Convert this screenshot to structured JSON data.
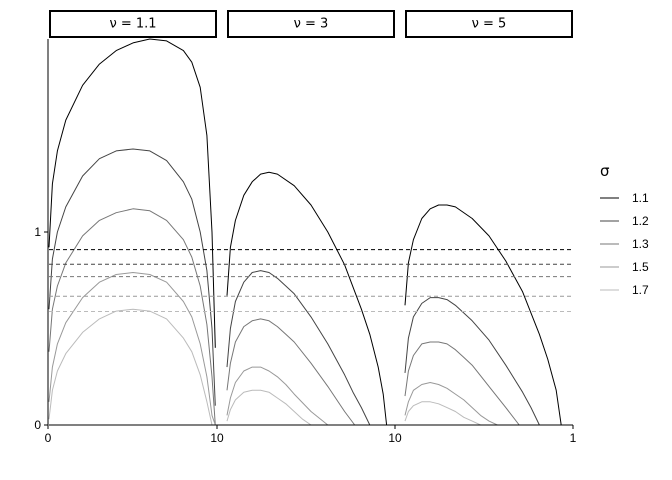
{
  "chart_data": {
    "type": "line",
    "ylim": [
      0,
      2
    ],
    "y_ticks": [
      "0",
      "1"
    ],
    "x_tick_label_start": "0",
    "x_tick_label_mid": "10",
    "x_tick_label_end": "1",
    "legend": {
      "title": "σ",
      "placement": "right",
      "entries": [
        "1.1",
        "1.2",
        "1.3",
        "1.5",
        "1.7"
      ]
    },
    "colors": [
      "#000000",
      "#444444",
      "#777777",
      "#999999",
      "#bbbbbb"
    ],
    "dashed_reference_lines": [
      0.909,
      0.833,
      0.769,
      0.667,
      0.588
    ],
    "panels": [
      {
        "label": "ν = 1.1",
        "series": [
          {
            "sigma": "1.1",
            "x": [
              0,
              0.02,
              0.05,
              0.1,
              0.2,
              0.3,
              0.4,
              0.5,
              0.6,
              0.7,
              0.8,
              0.85,
              0.9,
              0.94,
              0.97,
              0.99
            ],
            "y": [
              0.92,
              1.25,
              1.42,
              1.58,
              1.76,
              1.87,
              1.94,
              1.98,
              2.0,
              1.99,
              1.94,
              1.88,
              1.75,
              1.5,
              1.0,
              0.4
            ]
          },
          {
            "sigma": "1.2",
            "x": [
              0,
              0.02,
              0.05,
              0.1,
              0.2,
              0.3,
              0.4,
              0.5,
              0.6,
              0.7,
              0.8,
              0.85,
              0.9,
              0.94,
              0.97,
              0.99
            ],
            "y": [
              0.6,
              0.86,
              1.0,
              1.13,
              1.29,
              1.38,
              1.42,
              1.43,
              1.42,
              1.37,
              1.26,
              1.17,
              1.0,
              0.8,
              0.5,
              0.1
            ]
          },
          {
            "sigma": "1.3",
            "x": [
              0,
              0.02,
              0.05,
              0.1,
              0.2,
              0.3,
              0.4,
              0.5,
              0.6,
              0.7,
              0.8,
              0.85,
              0.9,
              0.94,
              0.97,
              0.99
            ],
            "y": [
              0.38,
              0.6,
              0.72,
              0.84,
              0.98,
              1.06,
              1.1,
              1.12,
              1.11,
              1.06,
              0.96,
              0.87,
              0.72,
              0.52,
              0.25,
              0.0
            ]
          },
          {
            "sigma": "1.5",
            "x": [
              0,
              0.02,
              0.05,
              0.1,
              0.2,
              0.3,
              0.4,
              0.5,
              0.6,
              0.7,
              0.8,
              0.85,
              0.9,
              0.94,
              0.97,
              0.99
            ],
            "y": [
              0.12,
              0.3,
              0.42,
              0.53,
              0.66,
              0.74,
              0.78,
              0.79,
              0.78,
              0.74,
              0.64,
              0.56,
              0.42,
              0.25,
              0.05,
              0.0
            ]
          },
          {
            "sigma": "1.7",
            "x": [
              0,
              0.02,
              0.05,
              0.1,
              0.2,
              0.3,
              0.4,
              0.5,
              0.6,
              0.7,
              0.8,
              0.85,
              0.9,
              0.94,
              0.97,
              0.99
            ],
            "y": [
              0.03,
              0.18,
              0.28,
              0.37,
              0.48,
              0.55,
              0.59,
              0.6,
              0.59,
              0.55,
              0.45,
              0.38,
              0.26,
              0.12,
              0.0,
              0.0
            ]
          }
        ]
      },
      {
        "label": "ν = 3",
        "series": [
          {
            "sigma": "1.1",
            "x": [
              0,
              0.02,
              0.05,
              0.1,
              0.15,
              0.2,
              0.25,
              0.3,
              0.4,
              0.5,
              0.6,
              0.7,
              0.8,
              0.85,
              0.9,
              0.93,
              0.95
            ],
            "y": [
              0.67,
              0.92,
              1.06,
              1.19,
              1.26,
              1.3,
              1.31,
              1.3,
              1.24,
              1.14,
              1.0,
              0.83,
              0.6,
              0.47,
              0.3,
              0.16,
              0.0
            ]
          },
          {
            "sigma": "1.2",
            "x": [
              0,
              0.02,
              0.05,
              0.1,
              0.15,
              0.2,
              0.25,
              0.3,
              0.4,
              0.5,
              0.6,
              0.7,
              0.75,
              0.8,
              0.85
            ],
            "y": [
              0.3,
              0.5,
              0.64,
              0.74,
              0.79,
              0.8,
              0.79,
              0.76,
              0.68,
              0.56,
              0.42,
              0.26,
              0.17,
              0.09,
              0.0
            ]
          },
          {
            "sigma": "1.3",
            "x": [
              0,
              0.02,
              0.05,
              0.1,
              0.15,
              0.2,
              0.25,
              0.3,
              0.35,
              0.4,
              0.5,
              0.6,
              0.7,
              0.76
            ],
            "y": [
              0.18,
              0.32,
              0.43,
              0.51,
              0.54,
              0.55,
              0.54,
              0.51,
              0.47,
              0.43,
              0.32,
              0.2,
              0.07,
              0.0
            ]
          },
          {
            "sigma": "1.5",
            "x": [
              0,
              0.02,
              0.05,
              0.1,
              0.15,
              0.2,
              0.25,
              0.3,
              0.35,
              0.4,
              0.5,
              0.6
            ],
            "y": [
              0.05,
              0.14,
              0.22,
              0.28,
              0.3,
              0.3,
              0.28,
              0.25,
              0.21,
              0.16,
              0.07,
              0.0
            ]
          },
          {
            "sigma": "1.7",
            "x": [
              0,
              0.02,
              0.05,
              0.1,
              0.15,
              0.2,
              0.25,
              0.3,
              0.35,
              0.4,
              0.45,
              0.5
            ],
            "y": [
              0.02,
              0.08,
              0.13,
              0.17,
              0.18,
              0.18,
              0.17,
              0.14,
              0.11,
              0.07,
              0.03,
              0.0
            ]
          }
        ]
      },
      {
        "label": "ν = 5",
        "series": [
          {
            "sigma": "1.1",
            "x": [
              0,
              0.02,
              0.05,
              0.1,
              0.15,
              0.2,
              0.25,
              0.3,
              0.4,
              0.5,
              0.6,
              0.7,
              0.8,
              0.85,
              0.9,
              0.93
            ],
            "y": [
              0.62,
              0.84,
              0.96,
              1.07,
              1.12,
              1.14,
              1.14,
              1.13,
              1.07,
              0.98,
              0.85,
              0.69,
              0.47,
              0.34,
              0.18,
              0.0
            ]
          },
          {
            "sigma": "1.2",
            "x": [
              0,
              0.02,
              0.05,
              0.1,
              0.15,
              0.2,
              0.25,
              0.3,
              0.4,
              0.5,
              0.6,
              0.7,
              0.75,
              0.8
            ],
            "y": [
              0.27,
              0.45,
              0.56,
              0.63,
              0.66,
              0.66,
              0.65,
              0.62,
              0.54,
              0.44,
              0.31,
              0.17,
              0.09,
              0.0
            ]
          },
          {
            "sigma": "1.3",
            "x": [
              0,
              0.02,
              0.05,
              0.1,
              0.15,
              0.2,
              0.25,
              0.3,
              0.35,
              0.4,
              0.5,
              0.6,
              0.68
            ],
            "y": [
              0.15,
              0.28,
              0.36,
              0.42,
              0.43,
              0.43,
              0.42,
              0.39,
              0.35,
              0.31,
              0.2,
              0.09,
              0.0
            ]
          },
          {
            "sigma": "1.5",
            "x": [
              0,
              0.02,
              0.05,
              0.1,
              0.15,
              0.2,
              0.25,
              0.3,
              0.35,
              0.4,
              0.45,
              0.5,
              0.55
            ],
            "y": [
              0.05,
              0.12,
              0.18,
              0.21,
              0.22,
              0.21,
              0.19,
              0.16,
              0.13,
              0.09,
              0.05,
              0.02,
              0.0
            ]
          },
          {
            "sigma": "1.7",
            "x": [
              0,
              0.02,
              0.05,
              0.1,
              0.15,
              0.2,
              0.25,
              0.3,
              0.35,
              0.4,
              0.45
            ],
            "y": [
              0.02,
              0.07,
              0.1,
              0.12,
              0.12,
              0.11,
              0.09,
              0.07,
              0.04,
              0.02,
              0.0
            ]
          }
        ]
      }
    ]
  }
}
